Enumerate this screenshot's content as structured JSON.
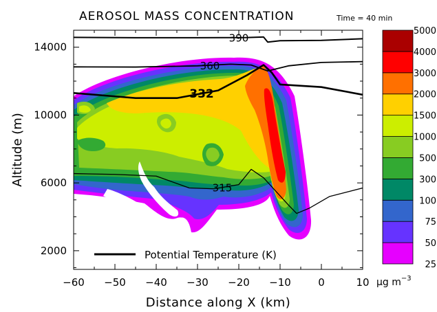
{
  "chart_data": {
    "type": "heatmap",
    "title": "AEROSOL MASS CONCENTRATION",
    "time_label": "Time = 40 min",
    "xlabel": "Distance along X (km)",
    "ylabel": "Altitude (m)",
    "xlim": [
      -60,
      10
    ],
    "ylim": [
      900,
      15000
    ],
    "x_ticks": [
      -60,
      -50,
      -40,
      -30,
      -20,
      -10,
      0,
      10
    ],
    "x_tick_labels": [
      "−60",
      "−50",
      "−40",
      "−30",
      "−20",
      "−10",
      "0",
      "10"
    ],
    "y_ticks": [
      2000,
      6000,
      10000,
      14000
    ],
    "y_tick_labels": [
      "2000",
      "6000",
      "10000",
      "14000"
    ],
    "colorbar": {
      "levels": [
        25,
        50,
        75,
        100,
        300,
        500,
        1000,
        1500,
        2000,
        3000,
        4000,
        5000
      ],
      "labels": [
        "25",
        "50",
        "75",
        "100",
        "300",
        "500",
        "1000",
        "1500",
        "2000",
        "3000",
        "4000",
        "5000"
      ],
      "colors": [
        "#e600ff",
        "#6633ff",
        "#3366cc",
        "#008866",
        "#33aa33",
        "#88cc22",
        "#ccee00",
        "#ffd000",
        "#ff7000",
        "#ff0000",
        "#aa0000"
      ],
      "unit_label": "μg m",
      "unit_exponent": "−3"
    },
    "contours": {
      "legend_label": "Potential Temperature (K)",
      "lines": [
        {
          "label": "390",
          "points": [
            [
              -60,
              14580
            ],
            [
              -45,
              14560
            ],
            [
              -30,
              14560
            ],
            [
              -18,
              14570
            ],
            [
              -14,
              14600
            ],
            [
              -13,
              14300
            ],
            [
              -10,
              14380
            ],
            [
              0,
              14400
            ],
            [
              10,
              14500
            ]
          ]
        },
        {
          "label": "360",
          "points": [
            [
              -60,
              12840
            ],
            [
              -45,
              12830
            ],
            [
              -30,
              12900
            ],
            [
              -22,
              13000
            ],
            [
              -17,
              12950
            ],
            [
              -13,
              12600
            ],
            [
              -8,
              12900
            ],
            [
              0,
              13100
            ],
            [
              10,
              13150
            ]
          ]
        },
        {
          "label": "332",
          "points": [
            [
              -60,
              11300
            ],
            [
              -50,
              11100
            ],
            [
              -45,
              11000
            ],
            [
              -35,
              11000
            ],
            [
              -25,
              11450
            ],
            [
              -18,
              12350
            ],
            [
              -14,
              12950
            ],
            [
              -12,
              12500
            ],
            [
              -10,
              11800
            ],
            [
              0,
              11650
            ],
            [
              10,
              11200
            ]
          ]
        },
        {
          "label": "315",
          "points": [
            [
              -60,
              6550
            ],
            [
              -50,
              6500
            ],
            [
              -40,
              6400
            ],
            [
              -32,
              5700
            ],
            [
              -26,
              5650
            ],
            [
              -20,
              5900
            ],
            [
              -17,
              6800
            ],
            [
              -14,
              6300
            ],
            [
              -11,
              5500
            ],
            [
              -8,
              4700
            ],
            [
              -6,
              4200
            ],
            [
              -3,
              4500
            ],
            [
              2,
              5200
            ],
            [
              10,
              5700
            ]
          ]
        }
      ]
    }
  }
}
